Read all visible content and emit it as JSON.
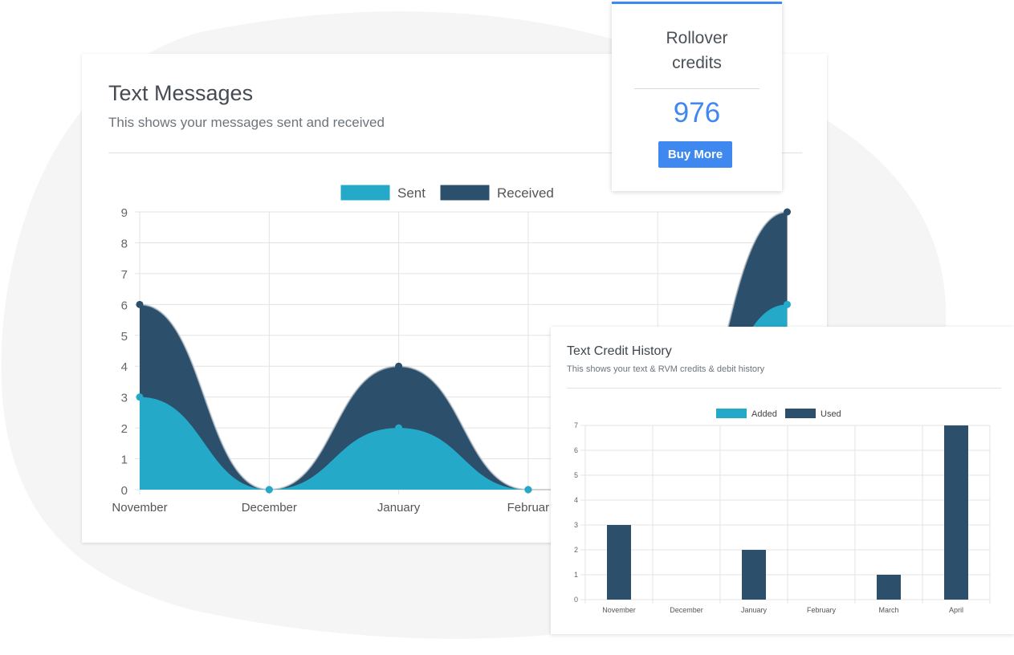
{
  "colors": {
    "sent": "#25a9c9",
    "received": "#2c4f6b",
    "accent": "#3f88ef",
    "grid": "#e3e3e3"
  },
  "messages_card": {
    "title": "Text Messages",
    "subtitle": "This shows your messages sent and received"
  },
  "rollover_card": {
    "label": "Rollover credits",
    "value": "976",
    "buy_label": "Buy More"
  },
  "history_card": {
    "title": "Text Credit History",
    "subtitle": "This shows your text & RVM credits & debit history"
  },
  "chart_data": [
    {
      "type": "area",
      "categories": [
        "November",
        "December",
        "January",
        "February",
        "March",
        "April"
      ],
      "visible_category_labels": [
        "November",
        "December",
        "January",
        "Februar"
      ],
      "series": [
        {
          "name": "Sent",
          "values": [
            3,
            0,
            2,
            0,
            0,
            6
          ]
        },
        {
          "name": "Received",
          "values": [
            3,
            0,
            2,
            0,
            0,
            3
          ]
        }
      ],
      "stacked": true,
      "ylim": [
        0,
        9
      ],
      "yticks": [
        0,
        1,
        2,
        3,
        4,
        5,
        6,
        7,
        8,
        9
      ],
      "legend": "top",
      "grid": true
    },
    {
      "type": "bar",
      "categories": [
        "November",
        "December",
        "January",
        "February",
        "March",
        "April"
      ],
      "series": [
        {
          "name": "Added",
          "values": [
            0,
            0,
            0,
            0,
            0,
            0
          ]
        },
        {
          "name": "Used",
          "values": [
            3,
            0,
            2,
            0,
            1,
            7
          ]
        }
      ],
      "ylim": [
        0,
        7
      ],
      "yticks": [
        0,
        1,
        2,
        3,
        4,
        5,
        6,
        7
      ],
      "legend": "top",
      "grid": true
    }
  ]
}
